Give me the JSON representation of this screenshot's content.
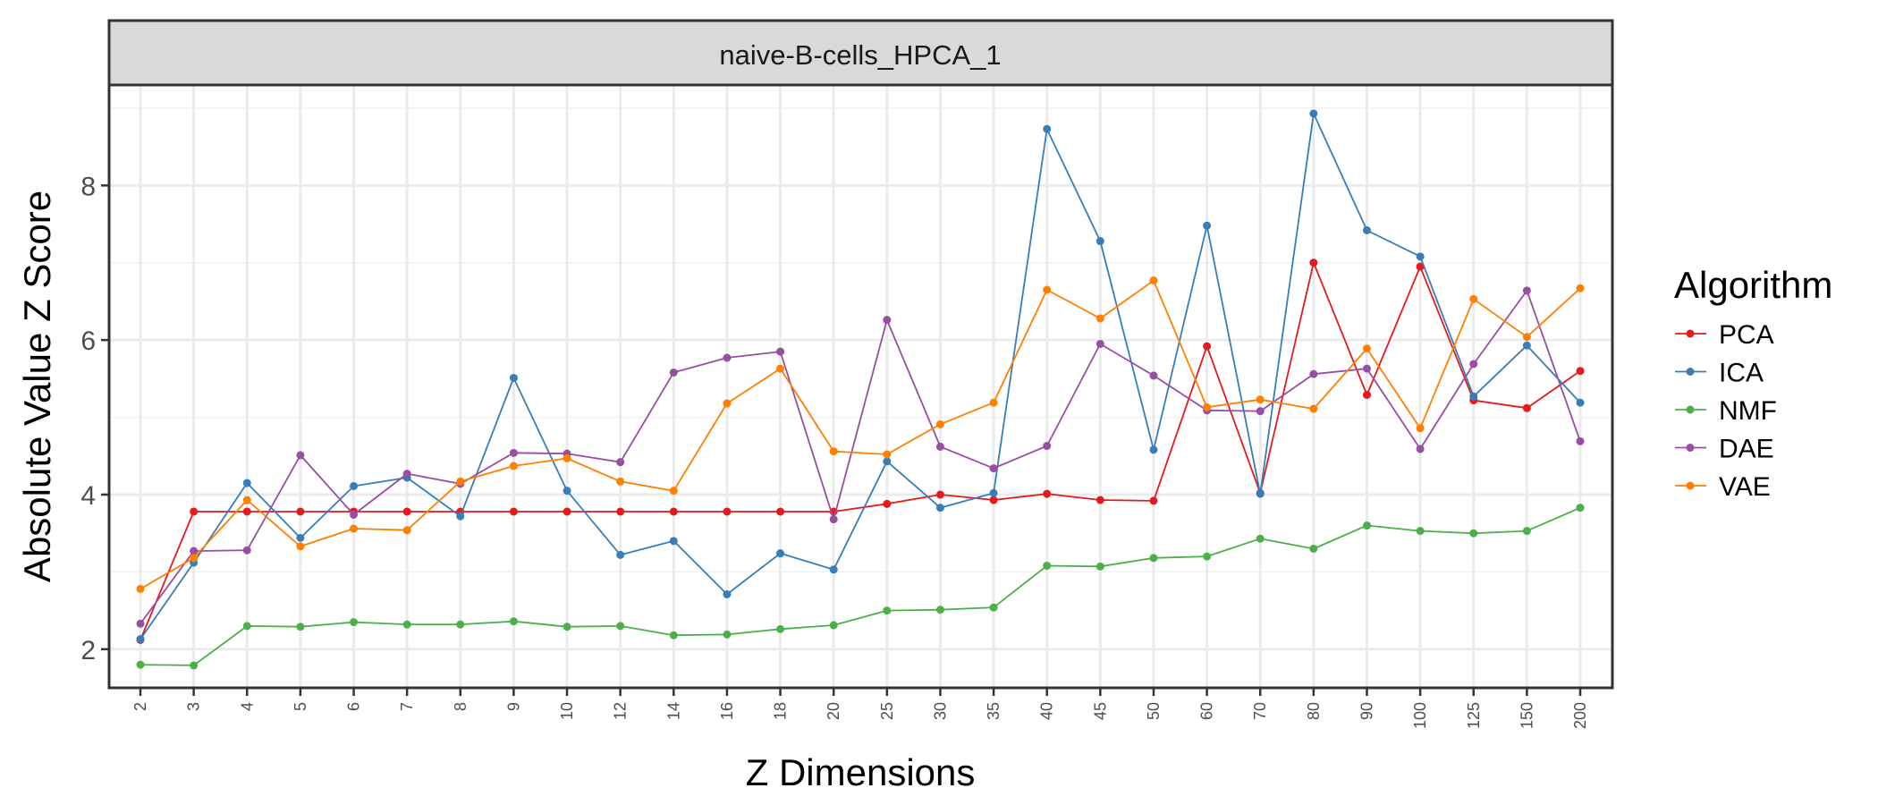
{
  "chart_data": {
    "type": "line",
    "facet_title": "naive-B-cells_HPCA_1",
    "xlabel": "Z Dimensions",
    "ylabel": "Absolute Value Z Score",
    "categories": [
      "2",
      "3",
      "4",
      "5",
      "6",
      "7",
      "8",
      "9",
      "10",
      "12",
      "14",
      "16",
      "18",
      "20",
      "25",
      "30",
      "35",
      "40",
      "45",
      "50",
      "60",
      "70",
      "80",
      "90",
      "100",
      "125",
      "150",
      "200"
    ],
    "ylim": [
      1.5,
      9.3
    ],
    "yticks": [
      2,
      4,
      6,
      8
    ],
    "ytick_labels": [
      "2",
      "4",
      "6",
      "8"
    ],
    "grid": true,
    "legend_title": "Algorithm",
    "legend_position": "right",
    "series": [
      {
        "name": "PCA",
        "color": "#E41A1C",
        "values": [
          2.12,
          3.78,
          3.78,
          3.78,
          3.78,
          3.78,
          3.78,
          3.78,
          3.78,
          3.78,
          3.78,
          3.78,
          3.78,
          3.78,
          3.88,
          4.0,
          3.93,
          4.01,
          3.93,
          3.92,
          5.92,
          4.02,
          7.0,
          5.29,
          6.95,
          5.22,
          5.12,
          5.6
        ]
      },
      {
        "name": "ICA",
        "color": "#377EB8",
        "values": [
          2.13,
          3.12,
          4.15,
          3.44,
          4.11,
          4.22,
          3.72,
          5.51,
          4.05,
          3.22,
          3.4,
          2.71,
          3.24,
          3.03,
          4.43,
          3.83,
          4.02,
          8.73,
          7.28,
          4.58,
          7.48,
          4.01,
          8.93,
          7.42,
          7.08,
          5.27,
          5.93,
          5.19
        ]
      },
      {
        "name": "NMF",
        "color": "#4DAF4A",
        "values": [
          1.8,
          1.79,
          2.3,
          2.29,
          2.35,
          2.32,
          2.32,
          2.36,
          2.29,
          2.3,
          2.18,
          2.19,
          2.26,
          2.31,
          2.5,
          2.51,
          2.54,
          3.08,
          3.07,
          3.18,
          3.2,
          3.43,
          3.3,
          3.6,
          3.53,
          3.5,
          3.53,
          3.83
        ]
      },
      {
        "name": "DAE",
        "color": "#984EA3",
        "values": [
          2.33,
          3.27,
          3.28,
          4.51,
          3.74,
          4.27,
          4.14,
          4.54,
          4.53,
          4.42,
          5.58,
          5.77,
          5.85,
          3.68,
          6.26,
          4.62,
          4.34,
          4.63,
          5.95,
          5.54,
          5.09,
          5.08,
          5.56,
          5.63,
          4.59,
          5.69,
          6.64,
          4.69
        ]
      },
      {
        "name": "VAE",
        "color": "#FF7F00",
        "values": [
          2.78,
          3.18,
          3.93,
          3.33,
          3.56,
          3.54,
          4.17,
          4.37,
          4.47,
          4.17,
          4.05,
          5.18,
          5.63,
          4.56,
          4.52,
          4.91,
          5.19,
          6.65,
          6.28,
          6.77,
          5.13,
          5.23,
          5.11,
          5.89,
          4.86,
          6.53,
          6.04,
          6.67
        ]
      }
    ]
  }
}
